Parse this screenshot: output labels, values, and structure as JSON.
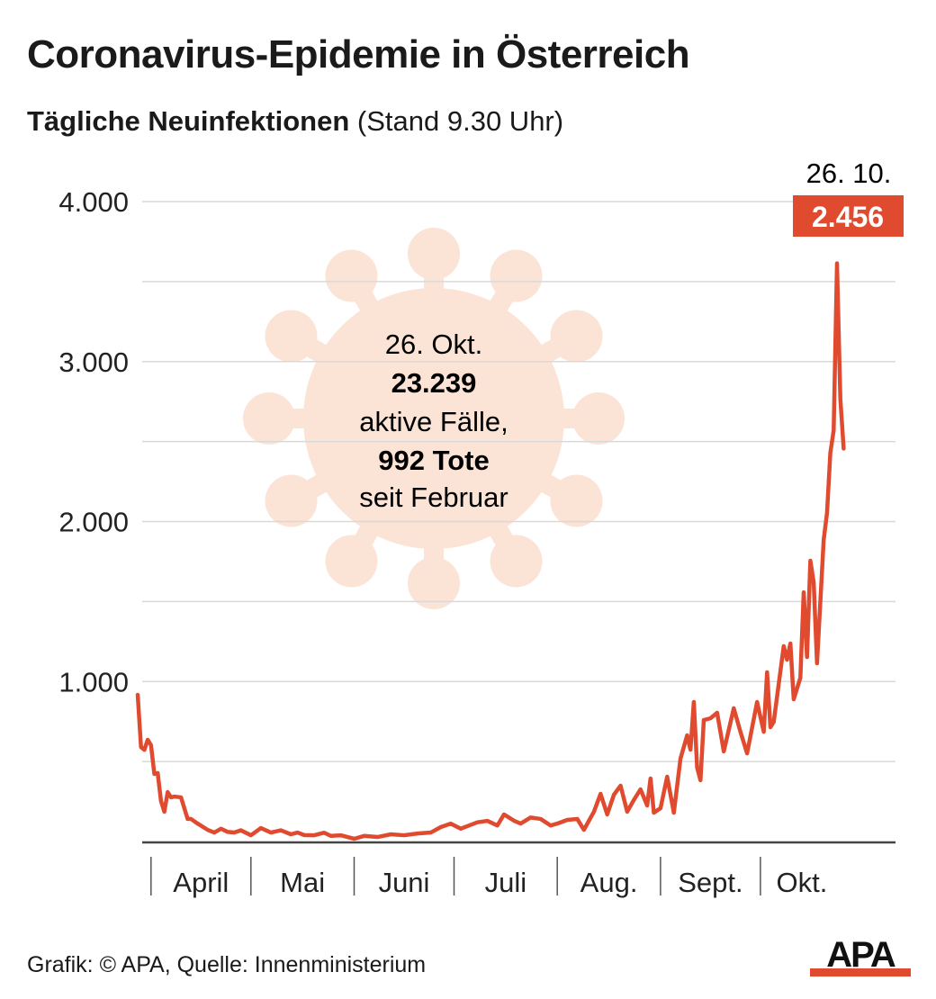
{
  "title": "Coronavirus-Epidemie in Österreich",
  "subtitle_bold": "Tägliche Neuinfektionen",
  "subtitle_rest": "(Stand 9.30 Uhr)",
  "footer": "Grafik: © APA, Quelle: Innenministerium",
  "logo_text": "APA",
  "colors": {
    "line": "#e04a2f",
    "virus": "#fbe3d6",
    "grid": "#d9d9d9",
    "axis": "#444444"
  },
  "info_bubble": {
    "date": "26. Okt.",
    "active_value": "23.239",
    "active_label": "aktive Fälle,",
    "deaths": "992 Tote",
    "since": "seit Februar"
  },
  "chart_data": {
    "type": "line",
    "title": "Tägliche Neuinfektionen",
    "xlabel": "",
    "ylabel": "",
    "x_unit": "days since first data point",
    "ylim": [
      0,
      4000
    ],
    "xlim": [
      0,
      212
    ],
    "yticks": [
      1000,
      2000,
      3000,
      4000
    ],
    "ytick_labels": [
      "1.000",
      "2.000",
      "3.000",
      "4.000"
    ],
    "gridlines_every": 500,
    "month_boundaries": [
      4,
      34,
      65,
      95,
      126,
      157,
      187
    ],
    "month_labels": [
      "April",
      "Mai",
      "Juni",
      "Juli",
      "Aug.",
      "Sept.",
      "Okt."
    ],
    "last_point_label_date": "26. 10.",
    "last_point_label_value": "2.456",
    "points": [
      [
        0,
        917
      ],
      [
        1,
        590
      ],
      [
        2,
        573
      ],
      [
        3,
        636
      ],
      [
        4,
        602
      ],
      [
        5,
        422
      ],
      [
        6,
        428
      ],
      [
        7,
        253
      ],
      [
        8,
        186
      ],
      [
        9,
        309
      ],
      [
        10,
        276
      ],
      [
        11,
        281
      ],
      [
        13,
        276
      ],
      [
        15,
        141
      ],
      [
        16,
        141
      ],
      [
        18,
        112
      ],
      [
        21,
        73
      ],
      [
        23,
        56
      ],
      [
        25,
        80
      ],
      [
        27,
        60
      ],
      [
        29,
        56
      ],
      [
        31,
        70
      ],
      [
        34,
        39
      ],
      [
        37,
        84
      ],
      [
        40,
        56
      ],
      [
        43,
        70
      ],
      [
        46,
        45
      ],
      [
        48,
        56
      ],
      [
        50,
        40
      ],
      [
        53,
        39
      ],
      [
        56,
        55
      ],
      [
        58,
        35
      ],
      [
        61,
        39
      ],
      [
        65,
        17
      ],
      [
        68,
        35
      ],
      [
        72,
        28
      ],
      [
        76,
        45
      ],
      [
        80,
        39
      ],
      [
        84,
        50
      ],
      [
        88,
        56
      ],
      [
        91,
        90
      ],
      [
        94,
        112
      ],
      [
        97,
        80
      ],
      [
        99,
        96
      ],
      [
        102,
        120
      ],
      [
        105,
        129
      ],
      [
        108,
        100
      ],
      [
        110,
        169
      ],
      [
        113,
        130
      ],
      [
        115,
        112
      ],
      [
        118,
        150
      ],
      [
        121,
        141
      ],
      [
        124,
        100
      ],
      [
        126,
        112
      ],
      [
        129,
        135
      ],
      [
        132,
        141
      ],
      [
        134,
        73
      ],
      [
        137,
        186
      ],
      [
        139,
        298
      ],
      [
        141,
        169
      ],
      [
        143,
        292
      ],
      [
        145,
        349
      ],
      [
        147,
        186
      ],
      [
        149,
        260
      ],
      [
        151,
        326
      ],
      [
        153,
        225
      ],
      [
        154,
        394
      ],
      [
        155,
        180
      ],
      [
        157,
        208
      ],
      [
        159,
        405
      ],
      [
        161,
        180
      ],
      [
        163,
        518
      ],
      [
        165,
        664
      ],
      [
        166,
        574
      ],
      [
        167,
        872
      ],
      [
        168,
        461
      ],
      [
        169,
        383
      ],
      [
        170,
        759
      ],
      [
        172,
        770
      ],
      [
        174,
        805
      ],
      [
        176,
        563
      ],
      [
        179,
        833
      ],
      [
        181,
        686
      ],
      [
        183,
        551
      ],
      [
        186,
        872
      ],
      [
        188,
        686
      ],
      [
        189,
        1058
      ],
      [
        190,
        714
      ],
      [
        191,
        748
      ],
      [
        194,
        1221
      ],
      [
        195,
        1136
      ],
      [
        196,
        1238
      ],
      [
        197,
        889
      ],
      [
        199,
        1024
      ],
      [
        200,
        1558
      ],
      [
        201,
        1153
      ],
      [
        202,
        1755
      ],
      [
        203,
        1620
      ],
      [
        204,
        1114
      ],
      [
        206,
        1885
      ],
      [
        207,
        2053
      ],
      [
        208,
        2430
      ],
      [
        209,
        2570
      ],
      [
        210,
        3614
      ],
      [
        211,
        2768
      ],
      [
        212,
        2456
      ]
    ]
  }
}
